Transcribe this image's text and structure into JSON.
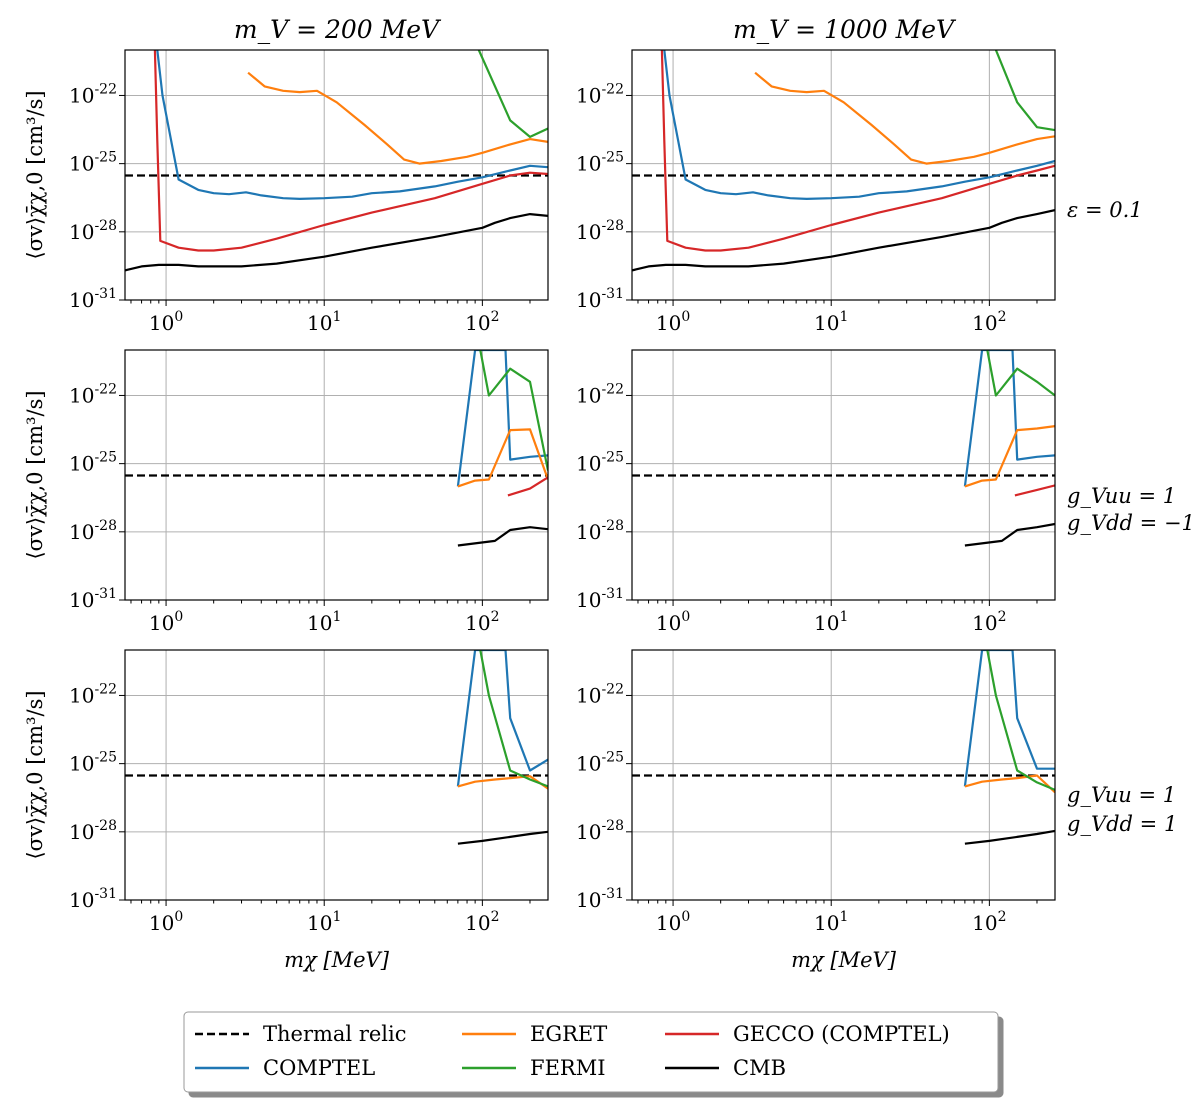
{
  "figure": {
    "column_titles": [
      "m_V = 200 MeV",
      "m_V = 1000 MeV"
    ],
    "row_labels": [
      [
        "ε = 0.1"
      ],
      [
        "g_Vuu = 1",
        "g_Vdd = −1"
      ],
      [
        "g_Vuu = 1",
        "g_Vdd = 1"
      ]
    ],
    "ylabel": "⟨σv⟩χ̄χ,0 [cm³/s]",
    "xlabel": "mχ [MeV]",
    "xscale": "log",
    "yscale": "log",
    "xlim": [
      0.55,
      260
    ],
    "ylim": [
      1e-31,
      1e-20
    ],
    "x_ticks": [
      {
        "value": 1,
        "base": "10",
        "exp": "0"
      },
      {
        "value": 10,
        "base": "10",
        "exp": "1"
      },
      {
        "value": 100,
        "base": "10",
        "exp": "2"
      }
    ],
    "y_ticks": [
      {
        "value": 1e-31,
        "base": "10",
        "exp": "-31"
      },
      {
        "value": 1e-28,
        "base": "10",
        "exp": "-28"
      },
      {
        "value": 1e-25,
        "base": "10",
        "exp": "-25"
      },
      {
        "value": 1e-22,
        "base": "10",
        "exp": "-22"
      }
    ],
    "grid": true
  },
  "legend": {
    "placement": "bottom-center",
    "columns": 3,
    "entries": [
      {
        "key": "thermal",
        "label": "Thermal relic",
        "color": "#000000",
        "dashed": true
      },
      {
        "key": "comptel",
        "label": "COMPTEL",
        "color": "#1f77b4",
        "dashed": false
      },
      {
        "key": "egret",
        "label": "EGRET",
        "color": "#ff7f0e",
        "dashed": false
      },
      {
        "key": "fermi",
        "label": "FERMI",
        "color": "#2ca02c",
        "dashed": false
      },
      {
        "key": "gecco",
        "label": "GECCO (COMPTEL)",
        "color": "#d62728",
        "dashed": false
      },
      {
        "key": "cmb",
        "label": "CMB",
        "color": "#000000",
        "dashed": false
      }
    ]
  },
  "chart_data": [
    {
      "type": "line",
      "row": 0,
      "col": 0,
      "title": "m_V = 200 MeV",
      "series": [
        {
          "key": "thermal",
          "x": [
            0.55,
            260
          ],
          "y": [
            3e-26,
            3e-26
          ]
        },
        {
          "key": "comptel",
          "x": [
            0.88,
            0.95,
            1.2,
            1.6,
            2.0,
            2.5,
            3.2,
            4.0,
            5.5,
            7.0,
            10,
            15,
            20,
            30,
            50,
            70,
            100,
            150,
            200,
            260
          ],
          "y": [
            1e-20,
            1e-22,
            2e-26,
            7e-27,
            5e-27,
            4.5e-27,
            5.5e-27,
            4e-27,
            3e-27,
            2.8e-27,
            3e-27,
            3.5e-27,
            5e-27,
            6e-27,
            1e-26,
            1.6e-26,
            2.5e-26,
            5e-26,
            8e-26,
            7e-26
          ]
        },
        {
          "key": "egret",
          "x": [
            3.3,
            4.2,
            5.5,
            7.0,
            9.0,
            12,
            18,
            25,
            32,
            40,
            55,
            80,
            100,
            150,
            200,
            260
          ],
          "y": [
            1e-21,
            2.5e-22,
            1.6e-22,
            1.4e-22,
            1.6e-22,
            5e-23,
            5e-24,
            7e-25,
            1.5e-25,
            1e-25,
            1.3e-25,
            2e-25,
            3e-25,
            7e-25,
            1.2e-24,
            9e-25
          ]
        },
        {
          "key": "fermi",
          "x": [
            95,
            150,
            200,
            260
          ],
          "y": [
            1e-20,
            8e-24,
            1.5e-24,
            3.5e-24
          ]
        },
        {
          "key": "gecco",
          "x": [
            0.85,
            0.88,
            0.92,
            1.2,
            1.6,
            2.0,
            3.0,
            5.0,
            10,
            20,
            50,
            100,
            150,
            200,
            260
          ],
          "y": [
            1e-20,
            1e-24,
            4e-29,
            2e-29,
            1.5e-29,
            1.5e-29,
            2e-29,
            5e-29,
            2e-28,
            7e-28,
            3e-27,
            1.3e-26,
            3e-26,
            4e-26,
            3.5e-26
          ]
        },
        {
          "key": "cmb",
          "x": [
            0.55,
            0.7,
            0.9,
            1.2,
            1.6,
            2.0,
            3.0,
            5.0,
            10,
            20,
            50,
            100,
            120,
            150,
            200,
            260
          ],
          "y": [
            2e-30,
            3e-30,
            3.5e-30,
            3.5e-30,
            3e-30,
            3e-30,
            3e-30,
            4e-30,
            8e-30,
            2e-29,
            6e-29,
            1.5e-28,
            2.5e-28,
            4e-28,
            6e-28,
            5e-28
          ]
        }
      ]
    },
    {
      "type": "line",
      "row": 0,
      "col": 1,
      "title": "m_V = 1000 MeV",
      "series": [
        {
          "key": "thermal",
          "x": [
            0.55,
            260
          ],
          "y": [
            3e-26,
            3e-26
          ]
        },
        {
          "key": "comptel",
          "x": [
            0.88,
            0.95,
            1.2,
            1.6,
            2.0,
            2.5,
            3.2,
            4.0,
            5.5,
            7.0,
            10,
            15,
            20,
            30,
            50,
            70,
            100,
            150,
            200,
            260
          ],
          "y": [
            1e-20,
            1e-22,
            2e-26,
            7e-27,
            5e-27,
            4.5e-27,
            5.5e-27,
            4e-27,
            3e-27,
            2.8e-27,
            3e-27,
            3.5e-27,
            5e-27,
            6e-27,
            1e-26,
            1.6e-26,
            2.5e-26,
            5e-26,
            8e-26,
            1.3e-25
          ]
        },
        {
          "key": "egret",
          "x": [
            3.3,
            4.2,
            5.5,
            7.0,
            9.0,
            12,
            18,
            25,
            32,
            40,
            55,
            80,
            100,
            150,
            200,
            260
          ],
          "y": [
            1e-21,
            2.5e-22,
            1.6e-22,
            1.4e-22,
            1.6e-22,
            5e-23,
            5e-24,
            7e-25,
            1.5e-25,
            1e-25,
            1.3e-25,
            2e-25,
            3e-25,
            7e-25,
            1.2e-24,
            1.6e-24
          ]
        },
        {
          "key": "fermi",
          "x": [
            110,
            150,
            200,
            260
          ],
          "y": [
            1e-20,
            5e-23,
            4e-24,
            3e-24
          ]
        },
        {
          "key": "gecco",
          "x": [
            0.85,
            0.88,
            0.92,
            1.2,
            1.6,
            2.0,
            3.0,
            5.0,
            10,
            20,
            50,
            100,
            150,
            200,
            260
          ],
          "y": [
            1e-20,
            1e-24,
            4e-29,
            2e-29,
            1.5e-29,
            1.5e-29,
            2e-29,
            5e-29,
            2e-28,
            7e-28,
            3e-27,
            1.3e-26,
            3e-26,
            5e-26,
            8e-26
          ]
        },
        {
          "key": "cmb",
          "x": [
            0.55,
            0.7,
            0.9,
            1.2,
            1.6,
            2.0,
            3.0,
            5.0,
            10,
            20,
            50,
            100,
            120,
            150,
            200,
            260
          ],
          "y": [
            2e-30,
            3e-30,
            3.5e-30,
            3.5e-30,
            3e-30,
            3e-30,
            3e-30,
            4e-30,
            8e-30,
            2e-29,
            6e-29,
            1.5e-28,
            2.5e-28,
            4e-28,
            6e-28,
            9e-28
          ]
        }
      ]
    },
    {
      "type": "line",
      "row": 1,
      "col": 0,
      "series": [
        {
          "key": "thermal",
          "x": [
            0.55,
            260
          ],
          "y": [
            3e-26,
            3e-26
          ]
        },
        {
          "key": "comptel",
          "x": [
            70,
            90,
            140,
            150,
            200,
            260
          ],
          "y": [
            1e-26,
            1e-20,
            1e-20,
            1.5e-25,
            2e-25,
            2.3e-25
          ]
        },
        {
          "key": "egret",
          "x": [
            70,
            90,
            110,
            150,
            200,
            260
          ],
          "y": [
            1e-26,
            1.8e-26,
            2e-26,
            3e-24,
            3.2e-24,
            2e-26
          ]
        },
        {
          "key": "fermi",
          "x": [
            97,
            110,
            150,
            200,
            260
          ],
          "y": [
            1e-20,
            1e-22,
            1.5e-21,
            4e-22,
            5e-26
          ]
        },
        {
          "key": "gecco",
          "x": [
            145,
            200,
            260
          ],
          "y": [
            4e-27,
            8e-27,
            2.5e-26
          ]
        },
        {
          "key": "cmb",
          "x": [
            70,
            120,
            150,
            200,
            260
          ],
          "y": [
            2.5e-29,
            4e-29,
            1.2e-28,
            1.6e-28,
            1.3e-28
          ]
        }
      ]
    },
    {
      "type": "line",
      "row": 1,
      "col": 1,
      "series": [
        {
          "key": "thermal",
          "x": [
            0.55,
            260
          ],
          "y": [
            3e-26,
            3e-26
          ]
        },
        {
          "key": "comptel",
          "x": [
            70,
            90,
            140,
            150,
            200,
            260
          ],
          "y": [
            1e-26,
            1e-20,
            1e-20,
            1.5e-25,
            2e-25,
            2.3e-25
          ]
        },
        {
          "key": "egret",
          "x": [
            70,
            90,
            110,
            150,
            200,
            260
          ],
          "y": [
            1e-26,
            1.8e-26,
            2e-26,
            3e-24,
            3.5e-24,
            4.5e-24
          ]
        },
        {
          "key": "fermi",
          "x": [
            97,
            110,
            150,
            200,
            260
          ],
          "y": [
            1e-20,
            1e-22,
            1.5e-21,
            4e-22,
            1e-22
          ]
        },
        {
          "key": "gecco",
          "x": [
            145,
            200,
            260
          ],
          "y": [
            4e-27,
            7e-27,
            1.1e-26
          ]
        },
        {
          "key": "cmb",
          "x": [
            70,
            120,
            150,
            200,
            260
          ],
          "y": [
            2.5e-29,
            4e-29,
            1.2e-28,
            1.6e-28,
            2.2e-28
          ]
        }
      ]
    },
    {
      "type": "line",
      "row": 2,
      "col": 0,
      "series": [
        {
          "key": "thermal",
          "x": [
            0.55,
            260
          ],
          "y": [
            3e-26,
            3e-26
          ]
        },
        {
          "key": "comptel",
          "x": [
            70,
            90,
            140,
            150,
            200,
            260
          ],
          "y": [
            1e-26,
            1e-20,
            1e-20,
            1e-23,
            5e-26,
            1.5e-25
          ]
        },
        {
          "key": "egret",
          "x": [
            70,
            90,
            120,
            150,
            200,
            260
          ],
          "y": [
            1e-26,
            1.6e-26,
            2e-26,
            2.3e-26,
            2.8e-26,
            8e-27
          ]
        },
        {
          "key": "fermi",
          "x": [
            97,
            110,
            150,
            200,
            260
          ],
          "y": [
            1e-20,
            1e-22,
            5e-26,
            2e-26,
            1e-26
          ]
        },
        {
          "key": "cmb",
          "x": [
            70,
            100,
            150,
            200,
            260
          ],
          "y": [
            3e-29,
            4e-29,
            6e-29,
            8e-29,
            1e-28
          ]
        }
      ]
    },
    {
      "type": "line",
      "row": 2,
      "col": 1,
      "series": [
        {
          "key": "thermal",
          "x": [
            0.55,
            260
          ],
          "y": [
            3e-26,
            3e-26
          ]
        },
        {
          "key": "comptel",
          "x": [
            70,
            90,
            140,
            150,
            200,
            260
          ],
          "y": [
            1e-26,
            1e-20,
            1e-20,
            1e-23,
            6e-26,
            6e-26
          ]
        },
        {
          "key": "egret",
          "x": [
            70,
            90,
            120,
            150,
            200,
            260
          ],
          "y": [
            1e-26,
            1.6e-26,
            2e-26,
            2.3e-26,
            3e-26,
            5.5e-27
          ]
        },
        {
          "key": "fermi",
          "x": [
            97,
            110,
            150,
            200,
            260
          ],
          "y": [
            1e-20,
            1e-22,
            5e-26,
            1.5e-26,
            7e-27
          ]
        },
        {
          "key": "cmb",
          "x": [
            70,
            100,
            150,
            200,
            260
          ],
          "y": [
            3e-29,
            4e-29,
            6e-29,
            8e-29,
            1.1e-28
          ]
        }
      ]
    }
  ]
}
